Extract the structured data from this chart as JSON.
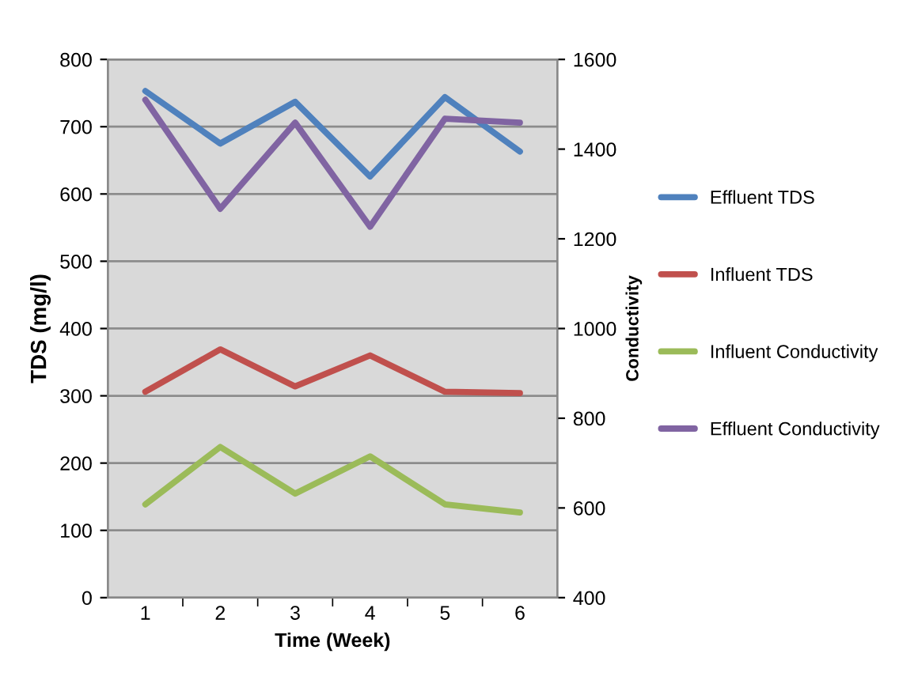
{
  "chart_data": {
    "type": "line",
    "xlabel": "Time (Week)",
    "ylabel": "TDS (mg/l)",
    "y2label": "Conductivity",
    "categories": [
      "1",
      "2",
      "3",
      "4",
      "5",
      "6"
    ],
    "series": [
      {
        "name": "Effluent TDS",
        "color": "#4f81bd",
        "values": [
          753,
          675,
          737,
          626,
          744,
          663
        ]
      },
      {
        "name": "Influent TDS",
        "color": "#c0504d",
        "values": [
          306,
          369,
          314,
          360,
          306,
          304
        ]
      },
      {
        "name": "Influent Conductivity",
        "color": "#9bbb59",
        "axis": "y2",
        "values": [
          608,
          736,
          632,
          715,
          608,
          590
        ]
      },
      {
        "name": "Effluent Conductivity",
        "color": "#8064a2",
        "axis": "y2",
        "values": [
          1510,
          1267,
          1459,
          1227,
          1468,
          1459
        ]
      }
    ],
    "ylim": [
      0,
      800
    ],
    "yticks": [
      0,
      100,
      200,
      300,
      400,
      500,
      600,
      700,
      800
    ],
    "y2lim": [
      400,
      1600
    ],
    "y2ticks": [
      400,
      600,
      800,
      1000,
      1200,
      1400,
      1600
    ],
    "grid": "y",
    "legend": "right",
    "marker": "none",
    "line_style": "solid"
  }
}
